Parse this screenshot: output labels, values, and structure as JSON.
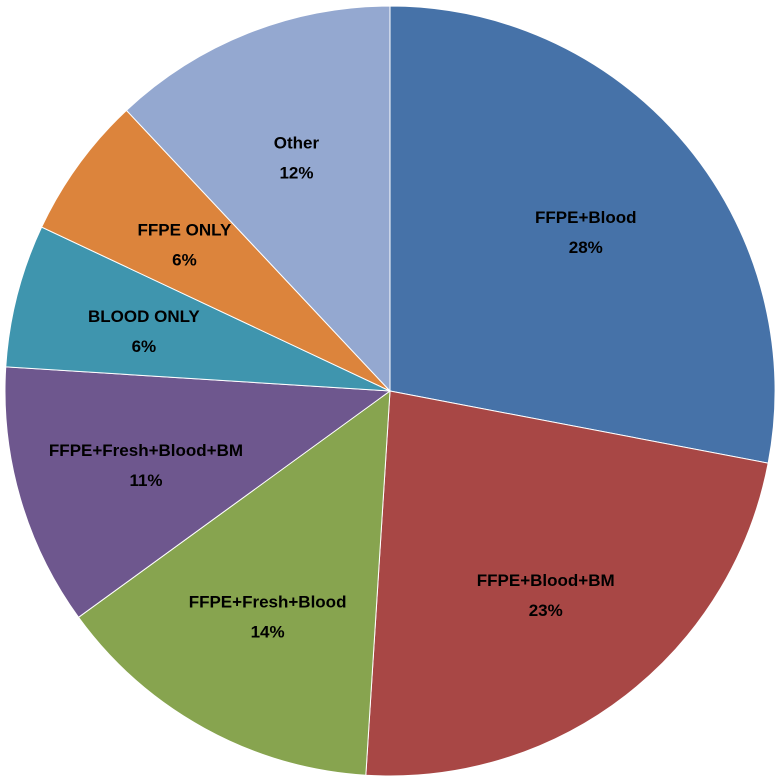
{
  "chart_data": {
    "type": "pie",
    "start_angle_deg": 0,
    "direction": "clockwise",
    "legend": "none",
    "slices": [
      {
        "label": "FFPE+Blood",
        "value": 28,
        "value_label": "28%",
        "color": "#4672A8"
      },
      {
        "label": "FFPE+Blood+BM",
        "value": 23,
        "value_label": "23%",
        "color": "#A84745"
      },
      {
        "label": "FFPE+Fresh+Blood",
        "value": 14,
        "value_label": "14%",
        "color": "#87A44F"
      },
      {
        "label": "FFPE+Fresh+Blood+BM",
        "value": 11,
        "value_label": "11%",
        "color": "#6E578E"
      },
      {
        "label": "BLOOD ONLY",
        "value": 6,
        "value_label": "6%",
        "color": "#3F95AE"
      },
      {
        "label": "FFPE ONLY",
        "value": 6,
        "value_label": "6%",
        "color": "#DC843C"
      },
      {
        "label": "Other",
        "value": 12,
        "value_label": "12%",
        "color": "#94A8D0"
      }
    ]
  }
}
